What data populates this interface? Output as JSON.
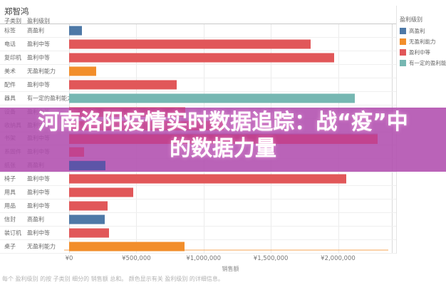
{
  "page": {
    "title": "郑智鸿"
  },
  "table_headers": {
    "col1": "子类别",
    "col2": "盈利级别"
  },
  "chart_data": {
    "type": "bar",
    "orientation": "horizontal",
    "title": "郑智鸿",
    "xlabel": "销售额",
    "xlim": [
      0,
      2400000
    ],
    "grid": true,
    "legend_position": "right",
    "legend_title": "盈利级别",
    "legend": [
      {
        "label": "高盈利",
        "color": "#4e79a7"
      },
      {
        "label": "无盈利能力",
        "color": "#f28e2b"
      },
      {
        "label": "盈利中等",
        "color": "#e15759"
      },
      {
        "label": "有一定的盈利能力",
        "color": "#76b7b2"
      }
    ],
    "x_ticks": [
      {
        "value": 0,
        "label": "¥0"
      },
      {
        "value": 500000,
        "label": "¥500,000"
      },
      {
        "value": 1000000,
        "label": "¥1,000,000"
      },
      {
        "value": 1500000,
        "label": "¥1,500,000"
      },
      {
        "value": 2000000,
        "label": "¥2,000,000"
      }
    ],
    "level_colors": {
      "高盈利": "#4e79a7",
      "无盈利能力": "#f28e2b",
      "盈利中等": "#e15759",
      "有一定的盈利能力": "#76b7b2"
    },
    "rows": [
      {
        "category": "标签",
        "level": "高盈利",
        "sales": 95000
      },
      {
        "category": "电话",
        "level": "盈利中等",
        "sales": 1795000
      },
      {
        "category": "复印机",
        "level": "盈利中等",
        "sales": 1970000
      },
      {
        "category": "美术",
        "level": "无盈利能力",
        "sales": 200000
      },
      {
        "category": "配件",
        "level": "盈利中等",
        "sales": 800000
      },
      {
        "category": "器具",
        "level": "有一定的盈利能力",
        "sales": 2125000
      },
      {
        "category": "设备",
        "level": "盈利中等",
        "sales": 865000
      },
      {
        "category": "收纳具",
        "level": "盈利中等",
        "sales": 1150000
      },
      {
        "category": "书架",
        "level": "盈利中等",
        "sales": 2295000
      },
      {
        "category": "系固件",
        "level": "盈利中等",
        "sales": 110000
      },
      {
        "category": "纸张",
        "level": "高盈利",
        "sales": 270000
      },
      {
        "category": "椅子",
        "level": "盈利中等",
        "sales": 2060000
      },
      {
        "category": "用具",
        "level": "盈利中等",
        "sales": 475000
      },
      {
        "category": "用品",
        "level": "盈利中等",
        "sales": 285000
      },
      {
        "category": "信封",
        "level": "高盈利",
        "sales": 265000
      },
      {
        "category": "装订机",
        "level": "盈利中等",
        "sales": 295000
      },
      {
        "category": "桌子",
        "level": "无盈利能力",
        "sales": 860000
      }
    ],
    "caption": "每个 盈利级别 的按 子类别 细分的 销售额 总和。 颜色显示有关 盈利级别 的详细信息。"
  },
  "banner": {
    "line1": "河南洛阳疫情实时数据追踪：战“疫”中",
    "line2": "的数据力量",
    "bg_color": "#b04cae",
    "text_color": "#ffffff",
    "covered_row_start": 6,
    "covered_row_end": 10,
    "under_bar_colors": {
      "高盈利": "#5d55a8",
      "default": "#c2438f"
    }
  }
}
